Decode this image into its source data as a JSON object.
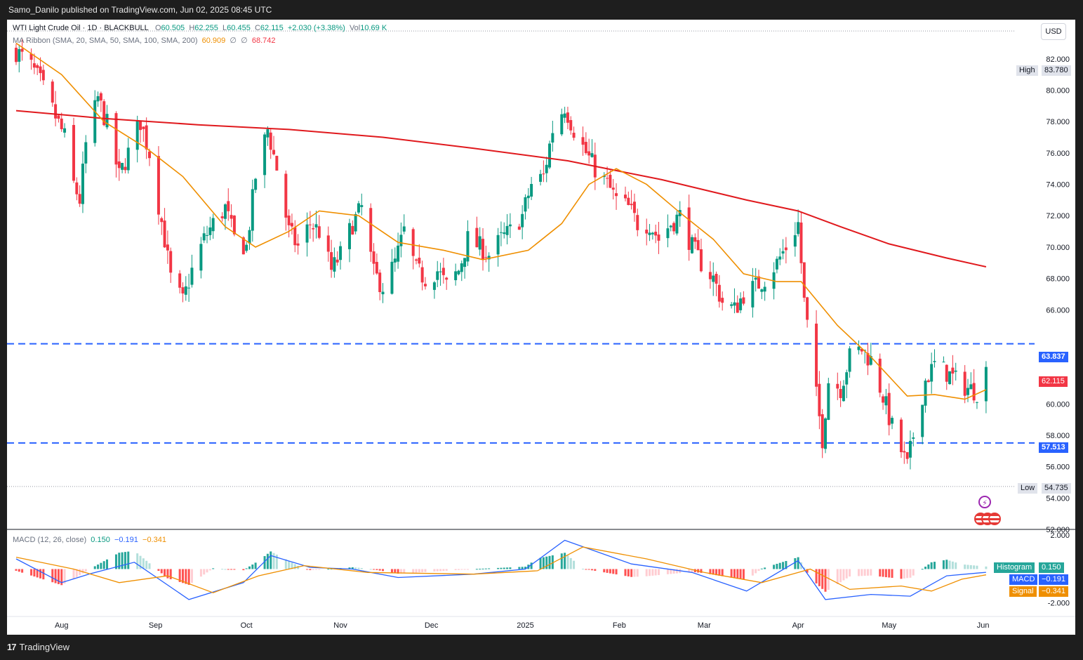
{
  "header": {
    "published": "Samo_Danilo published on TradingView.com, Jun 02, 2025 08:45 UTC"
  },
  "footer": {
    "logo_text": "TradingView"
  },
  "legend": {
    "symbol": "WTI Light Crude Oil · 1D · BLACKBULL",
    "open_label": "O",
    "open": "60.505",
    "high_label": "H",
    "high": "62.255",
    "low_label": "L",
    "low": "60.455",
    "close_label": "C",
    "close": "62.115",
    "change": "+2.030 (+3.38%)",
    "vol_label": "Vol",
    "vol": "10.69 K",
    "ma_label": "MA Ribbon (SMA, 20, SMA, 50, SMA, 100, SMA, 200)",
    "ma20": "60.909",
    "ma_empty1": "∅",
    "ma_empty2": "∅",
    "ma200": "68.742",
    "macd_label": "MACD (12, 26, close)",
    "macd_hist": "0.150",
    "macd_macd": "−0.191",
    "macd_signal": "−0.341"
  },
  "currency": "USD",
  "price_tags": {
    "high_label": "High",
    "high_value": "83.780",
    "low_label": "Low",
    "low_value": "54.735",
    "resistance": "63.837",
    "support": "57.513",
    "last": "62.115"
  },
  "macd_tags": {
    "hist_label": "Histogram",
    "hist_value": "0.150",
    "macd_label": "MACD",
    "macd_value": "−0.191",
    "signal_label": "Signal",
    "signal_value": "−0.341"
  },
  "colors": {
    "up": "#089981",
    "down": "#f23645",
    "ma20": "#ef8f00",
    "ma200": "#e0191d",
    "level": "#2962ff",
    "macd": "#2962ff",
    "signal": "#ef8f00",
    "hist_up_strong": "#26a69a",
    "hist_up_weak": "#b2dfdb",
    "hist_down_strong": "#ff5252",
    "hist_down_weak": "#ffcdd2"
  },
  "chart_data": {
    "type": "candlestick",
    "y_axis_ticks": [
      "82.000",
      "80.000",
      "78.000",
      "76.000",
      "74.000",
      "72.000",
      "70.000",
      "68.000",
      "66.000",
      "60.000",
      "58.000",
      "56.000",
      "54.000",
      "52.000"
    ],
    "ylim": [
      52.0,
      84.5
    ],
    "x_axis_labels": [
      "Aug",
      "Sep",
      "Oct",
      "Nov",
      "Dec",
      "2025",
      "Feb",
      "Mar",
      "Apr",
      "May",
      "Jun"
    ],
    "x_axis_dates": [
      "2024-08-01",
      "2024-09-01",
      "2024-10-01",
      "2024-11-01",
      "2024-12-01",
      "2025-01-01",
      "2025-02-01",
      "2025-03-01",
      "2025-04-01",
      "2025-05-01",
      "2025-06-01"
    ],
    "horizontal_levels": [
      63.837,
      57.513
    ],
    "high_marker": 83.78,
    "low_marker": 54.735,
    "close_path": [
      [
        "2024-07-17",
        82.5
      ],
      [
        "2024-07-22",
        81.5
      ],
      [
        "2024-07-25",
        80.5
      ],
      [
        "2024-07-30",
        78.3
      ],
      [
        "2024-08-02",
        77.0
      ],
      [
        "2024-08-05",
        74.0
      ],
      [
        "2024-08-07",
        73.0
      ],
      [
        "2024-08-09",
        76.5
      ],
      [
        "2024-08-13",
        79.5
      ],
      [
        "2024-08-16",
        77.8
      ],
      [
        "2024-08-20",
        74.5
      ],
      [
        "2024-08-23",
        76.0
      ],
      [
        "2024-08-27",
        78.0
      ],
      [
        "2024-08-30",
        76.0
      ],
      [
        "2024-09-04",
        70.5
      ],
      [
        "2024-09-06",
        68.0
      ],
      [
        "2024-09-10",
        66.5
      ],
      [
        "2024-09-13",
        68.5
      ],
      [
        "2024-09-17",
        70.5
      ],
      [
        "2024-09-20",
        71.5
      ],
      [
        "2024-09-24",
        72.5
      ],
      [
        "2024-09-27",
        70.5
      ],
      [
        "2024-10-01",
        70.0
      ],
      [
        "2024-10-04",
        74.5
      ],
      [
        "2024-10-08",
        77.5
      ],
      [
        "2024-10-11",
        75.0
      ],
      [
        "2024-10-15",
        71.0
      ],
      [
        "2024-10-18",
        70.0
      ],
      [
        "2024-10-22",
        71.5
      ],
      [
        "2024-10-25",
        71.0
      ],
      [
        "2024-10-29",
        68.5
      ],
      [
        "2024-11-01",
        69.5
      ],
      [
        "2024-11-05",
        71.5
      ],
      [
        "2024-11-08",
        72.5
      ],
      [
        "2024-11-12",
        68.3
      ],
      [
        "2024-11-15",
        67.5
      ],
      [
        "2024-11-19",
        69.0
      ],
      [
        "2024-11-22",
        71.0
      ],
      [
        "2024-11-26",
        68.5
      ],
      [
        "2024-11-29",
        68.0
      ],
      [
        "2024-12-03",
        68.5
      ],
      [
        "2024-12-06",
        67.5
      ],
      [
        "2024-12-10",
        68.5
      ],
      [
        "2024-12-13",
        70.5
      ],
      [
        "2024-12-17",
        70.0
      ],
      [
        "2024-12-20",
        69.5
      ],
      [
        "2024-12-24",
        70.5
      ],
      [
        "2024-12-27",
        71.0
      ],
      [
        "2024-12-31",
        72.0
      ],
      [
        "2025-01-03",
        74.0
      ],
      [
        "2025-01-07",
        74.5
      ],
      [
        "2025-01-10",
        77.5
      ],
      [
        "2025-01-14",
        79.0
      ],
      [
        "2025-01-17",
        77.5
      ],
      [
        "2025-01-21",
        76.0
      ],
      [
        "2025-01-24",
        75.0
      ],
      [
        "2025-01-28",
        74.0
      ],
      [
        "2025-01-31",
        73.0
      ],
      [
        "2025-02-04",
        72.5
      ],
      [
        "2025-02-07",
        71.5
      ],
      [
        "2025-02-11",
        71.5
      ],
      [
        "2025-02-14",
        70.5
      ],
      [
        "2025-02-18",
        71.5
      ],
      [
        "2025-02-21",
        72.0
      ],
      [
        "2025-02-25",
        70.0
      ],
      [
        "2025-02-28",
        69.0
      ],
      [
        "2025-03-04",
        68.0
      ],
      [
        "2025-03-07",
        66.5
      ],
      [
        "2025-03-11",
        66.0
      ],
      [
        "2025-03-14",
        67.0
      ],
      [
        "2025-03-18",
        67.5
      ],
      [
        "2025-03-21",
        68.0
      ],
      [
        "2025-03-25",
        69.0
      ],
      [
        "2025-03-28",
        70.0
      ],
      [
        "2025-04-01",
        71.5
      ],
      [
        "2025-04-03",
        66.5
      ],
      [
        "2025-04-07",
        60.5
      ],
      [
        "2025-04-09",
        57.8
      ],
      [
        "2025-04-11",
        61.5
      ],
      [
        "2025-04-15",
        61.0
      ],
      [
        "2025-04-18",
        63.0
      ],
      [
        "2025-04-22",
        63.5
      ],
      [
        "2025-04-25",
        62.8
      ],
      [
        "2025-04-29",
        60.5
      ],
      [
        "2025-05-02",
        58.5
      ],
      [
        "2025-05-05",
        57.0
      ],
      [
        "2025-05-07",
        56.0
      ],
      [
        "2025-05-09",
        58.0
      ],
      [
        "2025-05-13",
        61.5
      ],
      [
        "2025-05-16",
        62.5
      ],
      [
        "2025-05-20",
        62.0
      ],
      [
        "2025-05-23",
        61.5
      ],
      [
        "2025-05-27",
        61.0
      ],
      [
        "2025-05-30",
        60.8
      ],
      [
        "2025-06-02",
        62.115
      ]
    ],
    "ma20_path": [
      [
        "2024-07-17",
        83.0
      ],
      [
        "2024-08-01",
        81.0
      ],
      [
        "2024-08-15",
        78.0
      ],
      [
        "2024-08-29",
        76.3
      ],
      [
        "2024-09-10",
        74.5
      ],
      [
        "2024-09-24",
        71.3
      ],
      [
        "2024-10-04",
        70.0
      ],
      [
        "2024-10-15",
        71.0
      ],
      [
        "2024-10-25",
        72.3
      ],
      [
        "2024-11-07",
        72.0
      ],
      [
        "2024-11-20",
        70.3
      ],
      [
        "2024-12-05",
        69.8
      ],
      [
        "2024-12-18",
        69.2
      ],
      [
        "2025-01-02",
        69.8
      ],
      [
        "2025-01-13",
        71.5
      ],
      [
        "2025-01-22",
        74.0
      ],
      [
        "2025-01-31",
        75.0
      ],
      [
        "2025-02-10",
        74.0
      ],
      [
        "2025-02-21",
        72.2
      ],
      [
        "2025-03-04",
        70.5
      ],
      [
        "2025-03-14",
        68.3
      ],
      [
        "2025-03-25",
        67.8
      ],
      [
        "2025-04-02",
        67.8
      ],
      [
        "2025-04-14",
        65.0
      ],
      [
        "2025-04-25",
        63.0
      ],
      [
        "2025-05-07",
        60.5
      ],
      [
        "2025-05-16",
        60.6
      ],
      [
        "2025-05-26",
        60.3
      ],
      [
        "2025-06-02",
        60.909
      ]
    ],
    "ma200_path": [
      [
        "2024-07-17",
        78.7
      ],
      [
        "2024-08-15",
        78.2
      ],
      [
        "2024-09-15",
        77.8
      ],
      [
        "2024-10-15",
        77.5
      ],
      [
        "2024-11-15",
        77.0
      ],
      [
        "2024-12-15",
        76.3
      ],
      [
        "2025-01-15",
        75.5
      ],
      [
        "2025-02-15",
        74.3
      ],
      [
        "2025-03-15",
        73.0
      ],
      [
        "2025-04-01",
        72.3
      ],
      [
        "2025-04-15",
        71.3
      ],
      [
        "2025-05-01",
        70.2
      ],
      [
        "2025-05-20",
        69.3
      ],
      [
        "2025-06-02",
        68.742
      ]
    ],
    "macd_panel": {
      "y_axis_ticks": [
        "2.000",
        "-2.000"
      ],
      "ylim": [
        -2.8,
        2.3
      ],
      "macd_path": [
        [
          "2024-07-17",
          0.6
        ],
        [
          "2024-08-01",
          -0.8
        ],
        [
          "2024-08-10",
          -0.3
        ],
        [
          "2024-08-25",
          0.4
        ],
        [
          "2024-09-12",
          -1.8
        ],
        [
          "2024-09-30",
          -0.8
        ],
        [
          "2024-10-09",
          0.8
        ],
        [
          "2024-10-22",
          0.1
        ],
        [
          "2024-11-05",
          0.0
        ],
        [
          "2024-11-20",
          -0.5
        ],
        [
          "2024-12-15",
          -0.3
        ],
        [
          "2025-01-01",
          0.0
        ],
        [
          "2025-01-14",
          1.7
        ],
        [
          "2025-02-05",
          0.3
        ],
        [
          "2025-02-25",
          -0.2
        ],
        [
          "2025-03-15",
          -1.3
        ],
        [
          "2025-04-01",
          0.5
        ],
        [
          "2025-04-10",
          -1.8
        ],
        [
          "2025-04-25",
          -1.5
        ],
        [
          "2025-05-08",
          -1.6
        ],
        [
          "2025-05-20",
          -0.4
        ],
        [
          "2025-06-02",
          -0.191
        ]
      ],
      "signal_path": [
        [
          "2024-07-17",
          0.7
        ],
        [
          "2024-08-05",
          0.0
        ],
        [
          "2024-08-20",
          -0.8
        ],
        [
          "2024-09-05",
          -0.4
        ],
        [
          "2024-09-20",
          -1.4
        ],
        [
          "2024-10-05",
          -0.4
        ],
        [
          "2024-10-20",
          0.2
        ],
        [
          "2024-11-10",
          -0.2
        ],
        [
          "2024-12-15",
          -0.3
        ],
        [
          "2025-01-05",
          -0.1
        ],
        [
          "2025-01-20",
          1.3
        ],
        [
          "2025-02-10",
          0.6
        ],
        [
          "2025-03-01",
          -0.2
        ],
        [
          "2025-03-20",
          -0.8
        ],
        [
          "2025-04-05",
          0.0
        ],
        [
          "2025-04-18",
          -1.2
        ],
        [
          "2025-05-05",
          -1.0
        ],
        [
          "2025-05-15",
          -1.3
        ],
        [
          "2025-05-25",
          -0.6
        ],
        [
          "2025-06-02",
          -0.341
        ]
      ]
    }
  }
}
